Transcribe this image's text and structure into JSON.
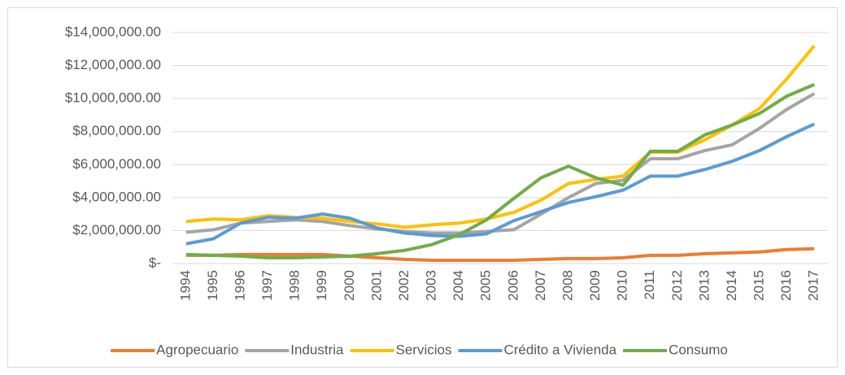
{
  "chart_data": {
    "type": "line",
    "categories": [
      "1994",
      "1995",
      "1996",
      "1997",
      "1998",
      "1999",
      "2000",
      "2001",
      "2002",
      "2003",
      "2004",
      "2005",
      "2006",
      "2007",
      "2008",
      "2009",
      "2010",
      "2011",
      "2012",
      "2013",
      "2014",
      "2015",
      "2016",
      "2017"
    ],
    "series": [
      {
        "name": "Agropecuario",
        "color": "#ed7d31",
        "values": [
          500000,
          500000,
          550000,
          550000,
          550000,
          550000,
          450000,
          350000,
          250000,
          200000,
          200000,
          200000,
          200000,
          250000,
          300000,
          300000,
          350000,
          500000,
          500000,
          600000,
          650000,
          700000,
          850000,
          900000
        ]
      },
      {
        "name": "Industria",
        "color": "#a5a5a5",
        "values": [
          1900000,
          2050000,
          2450000,
          2550000,
          2650000,
          2550000,
          2300000,
          2100000,
          1950000,
          1850000,
          1850000,
          1950000,
          2050000,
          3000000,
          4000000,
          4850000,
          5050000,
          6350000,
          6350000,
          6850000,
          7200000,
          8200000,
          9350000,
          10300000
        ]
      },
      {
        "name": "Servicios",
        "color": "#ffc000",
        "values": [
          2550000,
          2700000,
          2650000,
          2900000,
          2800000,
          2750000,
          2550000,
          2400000,
          2200000,
          2350000,
          2450000,
          2700000,
          3100000,
          3850000,
          4850000,
          5100000,
          5300000,
          6750000,
          6750000,
          7500000,
          8400000,
          9400000,
          11200000,
          13200000
        ]
      },
      {
        "name": "Crédito a Vivienda",
        "color": "#5b9bd5",
        "values": [
          1200000,
          1500000,
          2450000,
          2800000,
          2750000,
          3000000,
          2750000,
          2150000,
          1850000,
          1700000,
          1650000,
          1800000,
          2600000,
          3150000,
          3700000,
          4050000,
          4450000,
          5300000,
          5300000,
          5700000,
          6200000,
          6850000,
          7700000,
          8450000
        ]
      },
      {
        "name": "Consumo",
        "color": "#70ad47",
        "values": [
          550000,
          500000,
          450000,
          350000,
          350000,
          400000,
          450000,
          600000,
          800000,
          1150000,
          1750000,
          2650000,
          3950000,
          5200000,
          5900000,
          5200000,
          4750000,
          6800000,
          6800000,
          7800000,
          8400000,
          9100000,
          10150000,
          10850000
        ]
      }
    ],
    "ylim": [
      0,
      14000000
    ],
    "yticks": [
      {
        "value": 0,
        "label": "$-"
      },
      {
        "value": 2000000,
        "label": "$2,000,000.00"
      },
      {
        "value": 4000000,
        "label": "$4,000,000.00"
      },
      {
        "value": 6000000,
        "label": "$6,000,000.00"
      },
      {
        "value": 8000000,
        "label": "$8,000,000.00"
      },
      {
        "value": 10000000,
        "label": "$10,000,000.00"
      },
      {
        "value": 12000000,
        "label": "$12,000,000.00"
      },
      {
        "value": 14000000,
        "label": "$14,000,000.00"
      }
    ],
    "grid": true,
    "legend": "bottom"
  }
}
